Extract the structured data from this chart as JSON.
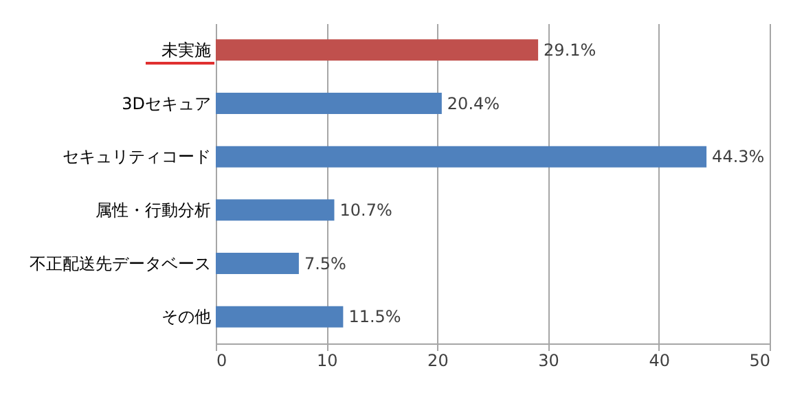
{
  "chart_data": {
    "type": "bar",
    "orientation": "horizontal",
    "categories": [
      "未実施",
      "3Dセキュア",
      "セキュリティコード",
      "属性・行動分析",
      "不正配送先データベース",
      "その他"
    ],
    "values": [
      29.1,
      20.4,
      44.3,
      10.7,
      7.5,
      11.5
    ],
    "colors": [
      "#c0504d",
      "#4f81bd",
      "#4f81bd",
      "#4f81bd",
      "#4f81bd",
      "#4f81bd"
    ],
    "value_labels": [
      "29.1%",
      "20.4%",
      "44.3%",
      "10.7%",
      "7.5%",
      "11.5%"
    ],
    "xlim": [
      0,
      50
    ],
    "xticks": [
      0,
      10,
      20,
      30,
      40,
      50
    ],
    "grid": "x"
  }
}
